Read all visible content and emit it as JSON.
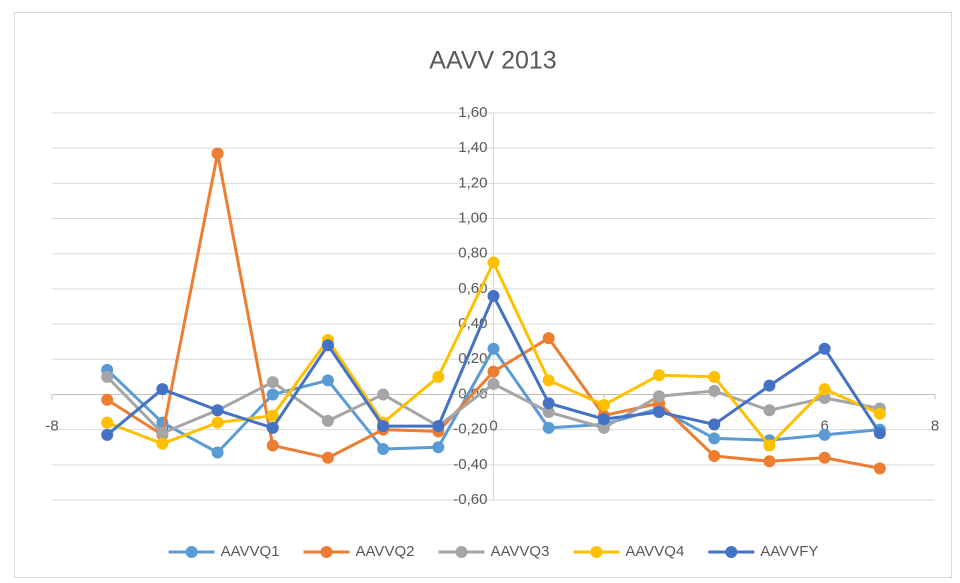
{
  "chart_data": {
    "type": "line",
    "title": "AAVV 2013",
    "x": [
      -7,
      -6,
      -5,
      -4,
      -3,
      -2,
      -1,
      0,
      1,
      2,
      3,
      4,
      5,
      6,
      7
    ],
    "series": [
      {
        "name": "AAVVQ1",
        "color": "#5b9bd5",
        "values": [
          0.14,
          -0.16,
          -0.33,
          0.0,
          0.08,
          -0.31,
          -0.3,
          0.26,
          -0.19,
          -0.17,
          -0.08,
          -0.25,
          -0.26,
          -0.23,
          -0.2
        ]
      },
      {
        "name": "AAVVQ2",
        "color": "#ed7d31",
        "values": [
          -0.03,
          -0.23,
          1.37,
          -0.29,
          -0.36,
          -0.2,
          -0.21,
          0.13,
          0.32,
          -0.12,
          -0.05,
          -0.35,
          -0.38,
          -0.36,
          -0.42
        ]
      },
      {
        "name": "AAVVQ3",
        "color": "#a5a5a5",
        "values": [
          0.1,
          -0.22,
          -0.09,
          0.07,
          -0.15,
          0.0,
          -0.18,
          0.06,
          -0.1,
          -0.19,
          -0.01,
          0.02,
          -0.09,
          -0.02,
          -0.08
        ]
      },
      {
        "name": "AAVVQ4",
        "color": "#ffc000",
        "values": [
          -0.16,
          -0.28,
          -0.16,
          -0.12,
          0.31,
          -0.16,
          0.1,
          0.75,
          0.08,
          -0.06,
          0.11,
          0.1,
          -0.29,
          0.03,
          -0.11
        ]
      },
      {
        "name": "AAVVFY",
        "color": "#4472c4",
        "values": [
          -0.23,
          0.03,
          -0.09,
          -0.19,
          0.28,
          -0.18,
          -0.18,
          0.56,
          -0.05,
          -0.14,
          -0.1,
          -0.17,
          0.05,
          0.26,
          -0.22
        ]
      }
    ],
    "xlim": [
      -8,
      8
    ],
    "ylim": [
      -0.6,
      1.6
    ],
    "xticks": [
      -8,
      -6,
      -4,
      -2,
      0,
      2,
      4,
      6,
      8
    ],
    "yticks": [
      {
        "value": -0.6,
        "label": "-0,60"
      },
      {
        "value": -0.4,
        "label": "-0,40"
      },
      {
        "value": -0.2,
        "label": "-0,20"
      },
      {
        "value": 0,
        "label": "0,00"
      },
      {
        "value": 0.2,
        "label": "0,20"
      },
      {
        "value": 0.4,
        "label": "0,40"
      },
      {
        "value": 0.6,
        "label": "0,60"
      },
      {
        "value": 0.8,
        "label": "0,80"
      },
      {
        "value": 1.0,
        "label": "1,00"
      },
      {
        "value": 1.2,
        "label": "1,20"
      },
      {
        "value": 1.4,
        "label": "1,40"
      },
      {
        "value": 1.6,
        "label": "1,60"
      }
    ],
    "grid": true,
    "legend": "bottom"
  }
}
